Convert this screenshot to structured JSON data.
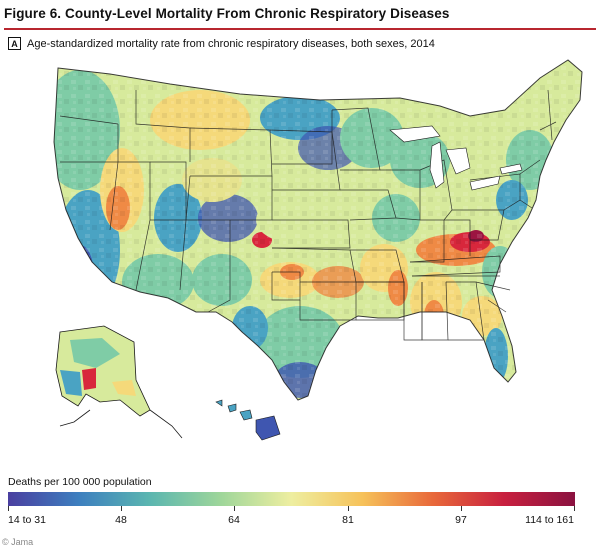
{
  "figure": {
    "title": "Figure 6. County-Level Mortality From Chronic Respiratory Diseases",
    "panel_letter": "A",
    "panel_caption": "Age-standardized mortality rate from chronic respiratory diseases, both sexes, 2014"
  },
  "legend": {
    "title": "Deaths per 100 000 population",
    "ticks": [
      "14 to 31",
      "48",
      "64",
      "81",
      "97",
      "114 to 161"
    ],
    "colors": [
      "#4a3fa0",
      "#3d7fbf",
      "#5bb6b0",
      "#9ed69a",
      "#eeeea0",
      "#f6c25a",
      "#e8683a",
      "#c8203f",
      "#8a1240"
    ]
  },
  "credit": "© Jama",
  "map": {
    "palette": {
      "low": "#3f56b0",
      "low_mid": "#4aa3c3",
      "mid": "#7fcca6",
      "mid_high": "#d7ea9c",
      "high_mid": "#f5d97a",
      "high": "#ef8a45",
      "very_high": "#d8273c",
      "extreme": "#9c1441"
    }
  }
}
